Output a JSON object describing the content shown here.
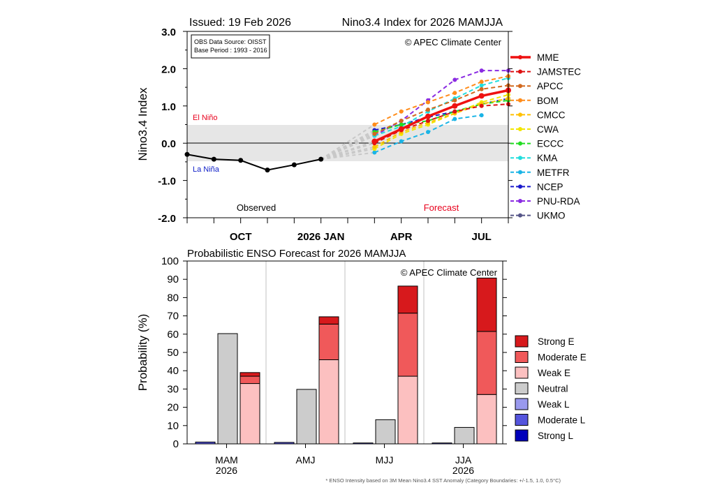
{
  "top": {
    "issued": "Issued: 19 Feb 2026",
    "title": "Nino3.4 Index for 2026 MAMJJA",
    "copyright": "© APEC Climate Center",
    "source_line1": "OBS Data Source: OISST",
    "source_line2": "Base Period : 1993 - 2016",
    "ylabel": "Nino3.4 Index",
    "el_nino": "El Niño",
    "la_nina": "La Niña",
    "observed_label": "Observed",
    "forecast_label": "Forecast"
  },
  "bottom": {
    "title": "Probabilistic ENSO Forecast for 2026 MAMJJA",
    "copyright": "©  APEC Climate Center",
    "ylabel": "Probability (%)",
    "footnote": "* ENSO Intensity based on 3M Mean Nino3.4 SST Anomaly (Category Boundaries: +/-1.5, 1.0, 0.5°C)"
  },
  "colors": {
    "el_nino_text": "#e8001c",
    "la_nina_text": "#1020c8",
    "forecast_text": "#e8001c",
    "neutral_band": "#e6e6e6"
  },
  "chart_data": [
    {
      "type": "line",
      "title": "Nino3.4 Index for 2026 MAMJJA",
      "ylabel": "Nino3.4 Index",
      "ylim": [
        -2.0,
        3.0
      ],
      "yticks": [
        "3.0",
        "2.0",
        "1.0",
        "0.0",
        "-1.0",
        "-2.0"
      ],
      "xticks": [
        "OCT",
        "2026 JAN",
        "APR",
        "JUL"
      ],
      "neutral_band": [
        -0.5,
        0.5
      ],
      "observed": {
        "months": [
          "Aug 2025",
          "Sep 2025",
          "Oct 2025",
          "Nov 2025",
          "Dec 2025",
          "Jan 2026"
        ],
        "values": [
          -0.3,
          -0.43,
          -0.46,
          -0.72,
          -0.58,
          -0.43
        ]
      },
      "forecast_months": [
        "Mar 2026",
        "Apr 2026",
        "May 2026",
        "Jun 2026",
        "Jul 2026",
        "Aug 2026"
      ],
      "series": [
        {
          "name": "MME",
          "color": "#ee1111",
          "values": [
            0.05,
            0.38,
            0.72,
            1.0,
            1.27,
            1.42
          ]
        },
        {
          "name": "JAMSTEC",
          "color": "#dd1111",
          "values": [
            0.0,
            0.35,
            0.6,
            0.85,
            1.0,
            1.05
          ]
        },
        {
          "name": "APCC",
          "color": "#d2691e",
          "values": [
            0.25,
            0.6,
            0.9,
            1.15,
            1.45,
            1.55
          ]
        },
        {
          "name": "BOM",
          "color": "#ff8c1a",
          "values": [
            0.5,
            0.85,
            1.1,
            1.35,
            1.65,
            1.8
          ]
        },
        {
          "name": "CMCC",
          "color": "#ffc000",
          "values": [
            -0.1,
            0.3,
            0.55,
            0.8,
            1.05,
            1.2
          ]
        },
        {
          "name": "CWA",
          "color": "#f2e600",
          "values": [
            -0.15,
            0.25,
            0.5,
            0.8,
            1.1,
            1.3
          ]
        },
        {
          "name": "ECCC",
          "color": "#22dd22",
          "values": [
            0.3,
            0.5,
            0.6,
            0.85,
            1.05,
            1.15
          ]
        },
        {
          "name": "KMA",
          "color": "#22dddd",
          "values": [
            0.2,
            0.45,
            0.85,
            1.2,
            1.55,
            1.75
          ]
        },
        {
          "name": "METFR",
          "color": "#1ab4e6",
          "values": [
            -0.25,
            0.05,
            0.3,
            0.65,
            0.75
          ]
        },
        {
          "name": "NCEP",
          "color": "#1a1acc",
          "values": [
            0.35,
            0.5,
            0.7,
            0.85,
            1.05,
            1.2
          ]
        },
        {
          "name": "PNU-RDA",
          "color": "#8a2be2",
          "values": [
            0.2,
            0.6,
            1.15,
            1.7,
            1.95,
            1.95
          ]
        },
        {
          "name": "UKMO",
          "color": "#555588",
          "values": []
        }
      ]
    },
    {
      "type": "bar",
      "stacked": true,
      "title": "Probabilistic ENSO Forecast for 2026 MAMJJA",
      "ylabel": "Probability (%)",
      "ylim": [
        0,
        100
      ],
      "yticks": [
        "0",
        "10",
        "20",
        "30",
        "40",
        "50",
        "60",
        "70",
        "80",
        "90",
        "100"
      ],
      "categories": [
        {
          "label1": "MAM",
          "label2": "2026"
        },
        {
          "label1": "AMJ",
          "label2": ""
        },
        {
          "label1": "MJJ",
          "label2": ""
        },
        {
          "label1": "JJA",
          "label2": "2026"
        }
      ],
      "legend": [
        {
          "name": "Strong E",
          "color": "#d7191c"
        },
        {
          "name": "Moderate E",
          "color": "#f0595a"
        },
        {
          "name": "Weak E",
          "color": "#fcc0c0"
        },
        {
          "name": "Neutral",
          "color": "#cccccc"
        },
        {
          "name": "Weak L",
          "color": "#9999ee"
        },
        {
          "name": "Moderate L",
          "color": "#5555dd"
        },
        {
          "name": "Strong L",
          "color": "#0000bb"
        }
      ],
      "la_nina_total": [
        1.0,
        0.8,
        0.5,
        0.5
      ],
      "neutral": [
        60.3,
        29.8,
        13.2,
        9.0
      ],
      "el_nino": {
        "weak": [
          33.0,
          46.0,
          37.0,
          27.0
        ],
        "moderate": [
          4.0,
          19.5,
          34.5,
          34.5
        ],
        "strong": [
          2.0,
          4.0,
          14.8,
          29.2
        ]
      }
    }
  ]
}
